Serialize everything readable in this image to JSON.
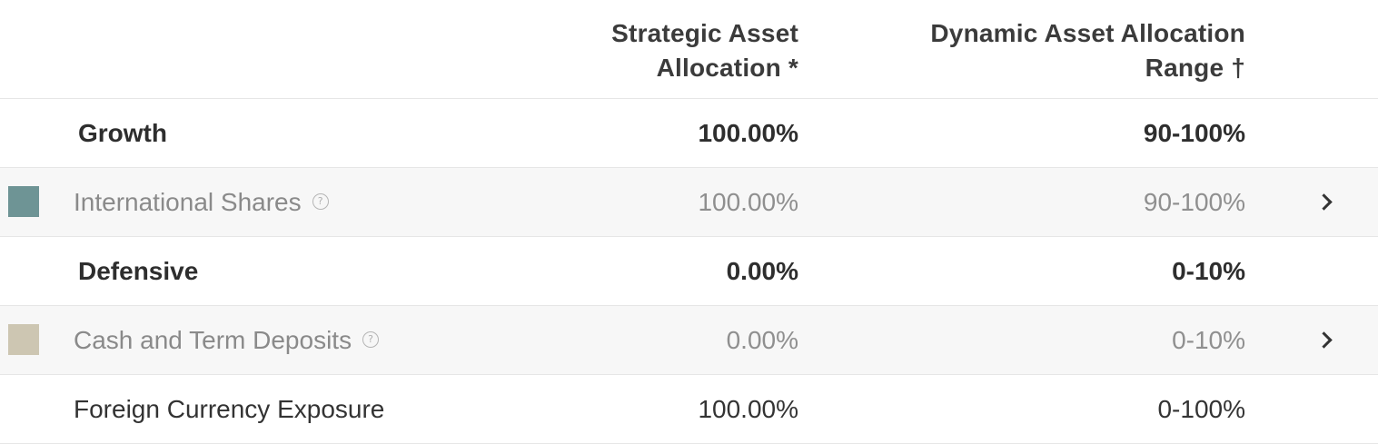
{
  "header": {
    "col_strategic_line1": "Strategic Asset",
    "col_strategic_line2": "Allocation *",
    "col_dynamic_line1": "Dynamic Asset Allocation",
    "col_dynamic_line2": "Range †"
  },
  "rows": [
    {
      "type": "group",
      "label": "Growth",
      "strategic": "100.00%",
      "dynamic": "90-100%"
    },
    {
      "type": "asset",
      "label": "International Shares",
      "strategic": "100.00%",
      "dynamic": "90-100%",
      "swatch_color": "#6e9495",
      "help_icon": "question-circle-icon",
      "action_icon": "chevron-right-icon"
    },
    {
      "type": "group",
      "label": "Defensive",
      "strategic": "0.00%",
      "dynamic": "0-10%"
    },
    {
      "type": "asset",
      "label": "Cash and Term Deposits",
      "strategic": "0.00%",
      "dynamic": "0-10%",
      "swatch_color": "#cdc6b2",
      "help_icon": "question-circle-icon",
      "action_icon": "chevron-right-icon"
    },
    {
      "type": "plain",
      "label": "Foreign Currency Exposure",
      "strategic": "100.00%",
      "dynamic": "0-100%"
    }
  ],
  "help_glyph": "?"
}
